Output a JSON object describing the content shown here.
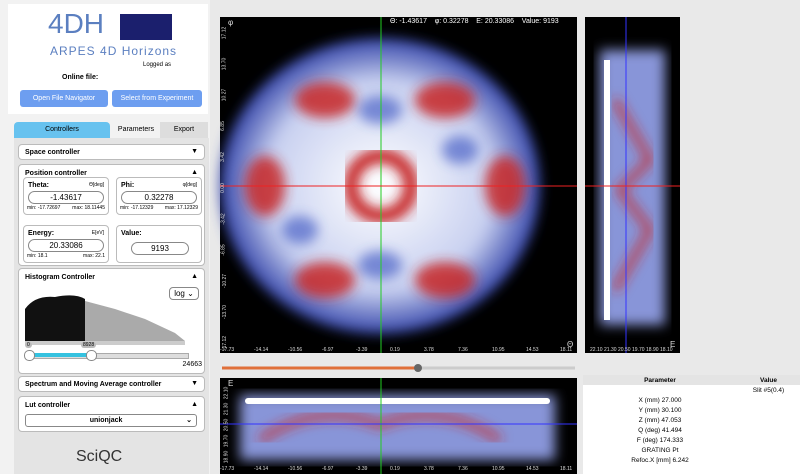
{
  "header": {
    "logo": "4DH",
    "subtitle": "ARPES 4D Horizons",
    "logged_as": "Logged as",
    "online_file": "Online file:",
    "buttons": [
      "Open File Navigator",
      "Select from Experiment"
    ]
  },
  "tabs": [
    "Controllers",
    "Parameters",
    "Export"
  ],
  "panels": {
    "space": "Space controller",
    "position": {
      "title": "Position controller",
      "fields": [
        {
          "label": "Theta:",
          "unit": "Θ[deg]",
          "value": "-1.43617",
          "min": "min: -17.72697",
          "max": "max: 18.11445"
        },
        {
          "label": "Phi:",
          "unit": "φ[deg]",
          "value": "0.32278",
          "min": "min: -17.12329",
          "max": "max: 17.12329"
        },
        {
          "label": "Energy:",
          "unit": "E[eV]",
          "value": "20.33086",
          "min": "min: 18.1",
          "max": "max: 22.1"
        }
      ],
      "value_label": "Value:",
      "value": "9193"
    },
    "histogram": {
      "title": "Histogram Controller",
      "scale": "log",
      "marker_left": "0",
      "marker_right": "8928",
      "max": "24663"
    },
    "spectrum": "Spectrum and Moving Average controller",
    "lut": {
      "title": "Lut controller",
      "selected": "unionjack"
    }
  },
  "footer_logo": "SciQC",
  "main_view": {
    "readout": "Θ: -1.43617    φ: 0.32278    E: 20.33086    Value: 9193",
    "x_ticks": [
      "-17.73",
      "-14.14",
      "-10.56",
      "-6.97",
      "-3.39",
      "0.19",
      "3.78",
      "7.36",
      "10.95",
      "14.53",
      "18.11"
    ],
    "x_label": "Θ",
    "y_ticks": [
      "17.12",
      "13.70",
      "10.27",
      "6.85",
      "3.42",
      "0.00",
      "-3.42",
      "-6.85",
      "-10.27",
      "-13.70",
      "-17.12"
    ],
    "y_label": "φ"
  },
  "side_view": {
    "x_ticks": [
      "22.10",
      "21.30",
      "20.50",
      "19.70",
      "18.90",
      "18.10"
    ],
    "x_label": "E"
  },
  "bottom_view": {
    "y_label": "E",
    "y_ticks": [
      "22.10",
      "21.30",
      "20.50",
      "19.70",
      "18.90"
    ]
  },
  "table": {
    "columns": [
      "Parameter",
      "Value"
    ],
    "rows": [
      {
        "value": "Slit #5(0.4)"
      },
      {
        "parameter": "X (mm) 27.000"
      },
      {
        "parameter": "Y (mm) 30.100"
      },
      {
        "parameter": "Z (mm) 47.053"
      },
      {
        "parameter": "Q (deg) 41.494"
      },
      {
        "parameter": "F (deg) 174.333"
      },
      {
        "parameter": "GRATING Pt"
      },
      {
        "parameter": "Refoc.X [mm] 6.242"
      }
    ]
  }
}
